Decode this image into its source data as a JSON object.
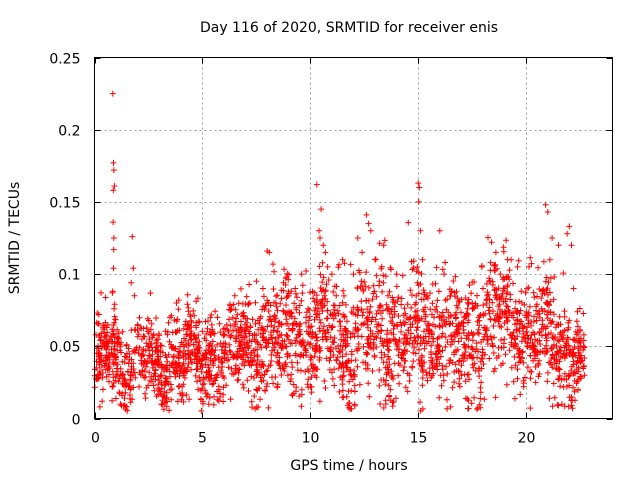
{
  "chart_data": {
    "type": "scatter",
    "title": "Day 116 of 2020, SRMTID for receiver enis",
    "xlabel": "GPS time / hours",
    "ylabel": "SRMTID / TECUs",
    "xlim": [
      0,
      24
    ],
    "ylim": [
      0,
      0.25
    ],
    "x_ticks": [
      0,
      5,
      10,
      15,
      20
    ],
    "x_tick_labels": [
      "0",
      "5",
      "10",
      "15",
      "20"
    ],
    "y_ticks": [
      0,
      0.05,
      0.1,
      0.15,
      0.2,
      0.25
    ],
    "y_tick_labels": [
      "0",
      "0.05",
      "0.1",
      "0.15",
      "0.2",
      "0.25"
    ],
    "grid": true,
    "marker": "plus",
    "color": "#ff0000",
    "series": [
      {
        "name": "SRMTID",
        "points": [
          [
            0.85,
            0.225
          ],
          [
            0.88,
            0.177
          ],
          [
            0.9,
            0.172
          ],
          [
            0.92,
            0.161
          ],
          [
            0.87,
            0.158
          ],
          [
            0.86,
            0.136
          ],
          [
            0.9,
            0.125
          ],
          [
            0.89,
            0.117
          ],
          [
            0.88,
            0.104
          ],
          [
            0.85,
            0.088
          ],
          [
            0.83,
            0.087
          ],
          [
            0.91,
            0.076
          ],
          [
            1.75,
            0.126
          ],
          [
            1.8,
            0.104
          ],
          [
            1.7,
            0.094
          ],
          [
            1.85,
            0.085
          ],
          [
            0.3,
            0.087
          ],
          [
            0.2,
            0.072
          ],
          [
            0.4,
            0.062
          ],
          [
            0.1,
            0.045
          ],
          [
            0.15,
            0.03
          ],
          [
            0.25,
            0.008
          ],
          [
            0.35,
            0.012
          ],
          [
            0.5,
            0.04
          ],
          [
            0.6,
            0.05
          ],
          [
            0.7,
            0.035
          ],
          [
            1.2,
            0.01
          ],
          [
            1.25,
            0.009
          ],
          [
            1.1,
            0.055
          ],
          [
            1.3,
            0.06
          ],
          [
            1.5,
            0.045
          ],
          [
            2.0,
            0.065
          ],
          [
            2.2,
            0.055
          ],
          [
            2.5,
            0.05
          ],
          [
            2.8,
            0.04
          ],
          [
            3.0,
            0.02
          ],
          [
            3.1,
            0.01
          ],
          [
            3.2,
            0.015
          ],
          [
            3.4,
            0.06
          ],
          [
            3.5,
            0.07
          ],
          [
            3.8,
            0.08
          ],
          [
            3.9,
            0.082
          ],
          [
            4.2,
            0.065
          ],
          [
            4.5,
            0.055
          ],
          [
            4.8,
            0.045
          ],
          [
            5.2,
            0.015
          ],
          [
            5.4,
            0.06
          ],
          [
            5.7,
            0.07
          ],
          [
            6.0,
            0.045
          ],
          [
            6.3,
            0.075
          ],
          [
            6.5,
            0.085
          ],
          [
            6.8,
            0.06
          ],
          [
            7.2,
            0.08
          ],
          [
            7.5,
            0.095
          ],
          [
            7.8,
            0.09
          ],
          [
            8.0,
            0.116
          ],
          [
            8.1,
            0.115
          ],
          [
            8.4,
            0.08
          ],
          [
            8.7,
            0.05
          ],
          [
            9.0,
            0.085
          ],
          [
            9.3,
            0.09
          ],
          [
            9.6,
            0.1
          ],
          [
            9.8,
            0.07
          ],
          [
            10.0,
            0.06
          ],
          [
            10.3,
            0.162
          ],
          [
            10.4,
            0.13
          ],
          [
            10.5,
            0.145
          ],
          [
            10.45,
            0.125
          ],
          [
            10.6,
            0.12
          ],
          [
            10.7,
            0.115
          ],
          [
            10.8,
            0.105
          ],
          [
            11.0,
            0.1
          ],
          [
            11.2,
            0.085
          ],
          [
            11.5,
            0.11
          ],
          [
            11.7,
            0.06
          ],
          [
            11.9,
            0.04
          ],
          [
            12.0,
            0.1
          ],
          [
            12.2,
            0.125
          ],
          [
            12.4,
            0.115
          ],
          [
            12.6,
            0.141
          ],
          [
            12.7,
            0.135
          ],
          [
            12.8,
            0.13
          ],
          [
            13.0,
            0.11
          ],
          [
            13.2,
            0.095
          ],
          [
            13.4,
            0.12
          ],
          [
            13.6,
            0.085
          ],
          [
            13.8,
            0.07
          ],
          [
            14.0,
            0.1
          ],
          [
            14.2,
            0.06
          ],
          [
            14.4,
            0.04
          ],
          [
            14.6,
            0.03
          ],
          [
            14.8,
            0.07
          ],
          [
            15.0,
            0.163
          ],
          [
            15.05,
            0.16
          ],
          [
            15.02,
            0.15
          ],
          [
            15.1,
            0.13
          ],
          [
            15.2,
            0.11
          ],
          [
            15.4,
            0.085
          ],
          [
            15.6,
            0.06
          ],
          [
            15.8,
            0.045
          ],
          [
            16.0,
            0.13
          ],
          [
            16.2,
            0.1
          ],
          [
            16.5,
            0.085
          ],
          [
            16.8,
            0.06
          ],
          [
            17.0,
            0.03
          ],
          [
            17.2,
            0.05
          ],
          [
            17.5,
            0.08
          ],
          [
            17.8,
            0.07
          ],
          [
            18.0,
            0.09
          ],
          [
            18.2,
            0.085
          ],
          [
            18.4,
            0.122
          ],
          [
            18.6,
            0.115
          ],
          [
            18.8,
            0.1
          ],
          [
            19.0,
            0.09
          ],
          [
            19.3,
            0.11
          ],
          [
            19.6,
            0.105
          ],
          [
            19.8,
            0.08
          ],
          [
            20.0,
            0.06
          ],
          [
            20.2,
            0.055
          ],
          [
            20.4,
            0.05
          ],
          [
            20.6,
            0.04
          ],
          [
            20.9,
            0.148
          ],
          [
            21.0,
            0.143
          ],
          [
            21.1,
            0.11
          ],
          [
            21.2,
            0.125
          ],
          [
            21.3,
            0.098
          ],
          [
            21.5,
            0.12
          ],
          [
            21.7,
            0.06
          ],
          [
            21.9,
            0.128
          ],
          [
            22.0,
            0.133
          ],
          [
            22.1,
            0.12
          ],
          [
            22.2,
            0.09
          ],
          [
            22.3,
            0.06
          ],
          [
            22.4,
            0.02
          ],
          [
            22.5,
            0.05
          ],
          [
            22.6,
            0.04
          ],
          [
            22.7,
            0.03
          ]
        ]
      }
    ],
    "background_model": {
      "description": "dense noisy cloud summarizing the bulk of the scatter",
      "mean_profile": [
        [
          0,
          0.035
        ],
        [
          1,
          0.042
        ],
        [
          2,
          0.04
        ],
        [
          3,
          0.035
        ],
        [
          4,
          0.045
        ],
        [
          5,
          0.04
        ],
        [
          6,
          0.042
        ],
        [
          7,
          0.048
        ],
        [
          8,
          0.055
        ],
        [
          9,
          0.058
        ],
        [
          10,
          0.056
        ],
        [
          11,
          0.062
        ],
        [
          12,
          0.058
        ],
        [
          13,
          0.065
        ],
        [
          14,
          0.055
        ],
        [
          15,
          0.058
        ],
        [
          16,
          0.06
        ],
        [
          17,
          0.055
        ],
        [
          18,
          0.062
        ],
        [
          19,
          0.068
        ],
        [
          20,
          0.062
        ],
        [
          21,
          0.055
        ],
        [
          22,
          0.045
        ],
        [
          22.7,
          0.035
        ]
      ],
      "spread_profile": [
        [
          0,
          0.012
        ],
        [
          2,
          0.014
        ],
        [
          4,
          0.015
        ],
        [
          6,
          0.015
        ],
        [
          8,
          0.018
        ],
        [
          10,
          0.02
        ],
        [
          12,
          0.022
        ],
        [
          14,
          0.02
        ],
        [
          16,
          0.02
        ],
        [
          18,
          0.022
        ],
        [
          20,
          0.02
        ],
        [
          22,
          0.016
        ],
        [
          22.7,
          0.012
        ]
      ],
      "x_start": 0.0,
      "x_end": 22.7,
      "count": 2600
    }
  }
}
